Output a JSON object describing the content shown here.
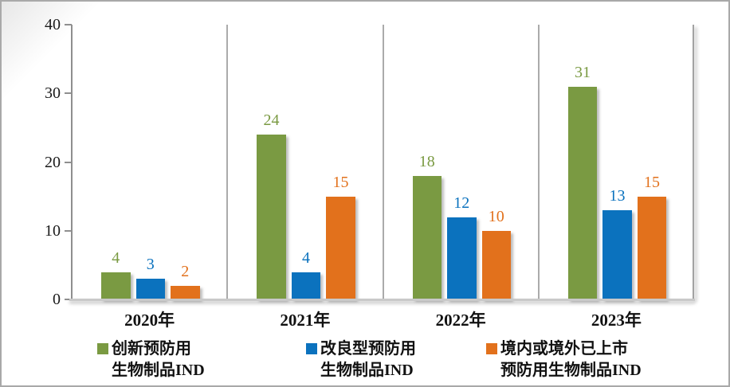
{
  "chart_data": {
    "type": "bar",
    "title": "",
    "xlabel": "",
    "ylabel": "",
    "categories": [
      "2020年",
      "2021年",
      "2022年",
      "2023年"
    ],
    "series": [
      {
        "name": "创新预防用生物制品IND",
        "legend_lines": [
          "创新预防用",
          "生物制品IND"
        ],
        "color": "#7A9A42",
        "values": [
          4,
          24,
          18,
          31
        ]
      },
      {
        "name": "改良型预防用生物制品IND",
        "legend_lines": [
          "改良型预防用",
          "生物制品IND"
        ],
        "color": "#0B72BE",
        "values": [
          3,
          4,
          12,
          13
        ]
      },
      {
        "name": "境内或境外已上市预防用生物制品IND",
        "legend_lines": [
          "境内或境外已上市",
          "预防用生物制品IND"
        ],
        "color": "#E2711C",
        "values": [
          2,
          15,
          10,
          15
        ]
      }
    ],
    "ylim": [
      0,
      40
    ],
    "yticks": [
      0,
      10,
      20,
      30,
      40
    ],
    "bar_value_labels": true,
    "grid": "vertical category dividers",
    "legend_position": "bottom"
  }
}
